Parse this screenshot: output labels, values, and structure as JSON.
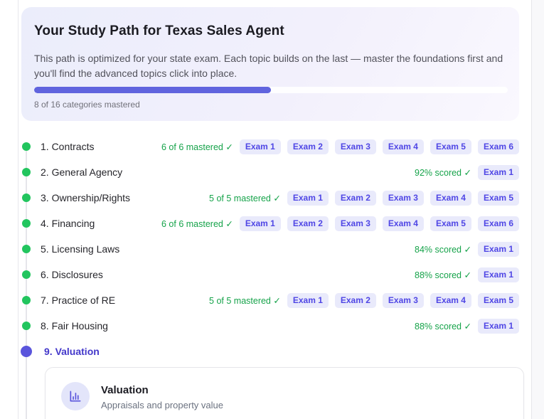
{
  "header": {
    "title": "Your Study Path for Texas Sales Agent",
    "description": "This path is optimized for your state exam. Each topic builds on the last — master the foundations first and you'll find the advanced topics click into place.",
    "progress": {
      "percent": 50,
      "label": "8 of 16 categories mastered"
    }
  },
  "topics": [
    {
      "label": "1. Contracts",
      "status": "6 of 6 mastered ✓",
      "exams": [
        "Exam 1",
        "Exam 2",
        "Exam 3",
        "Exam 4",
        "Exam 5",
        "Exam 6"
      ],
      "state": "complete"
    },
    {
      "label": "2. General Agency",
      "status": "92% scored ✓",
      "exams": [
        "Exam 1"
      ],
      "state": "complete"
    },
    {
      "label": "3. Ownership/Rights",
      "status": "5 of 5 mastered ✓",
      "exams": [
        "Exam 1",
        "Exam 2",
        "Exam 3",
        "Exam 4",
        "Exam 5"
      ],
      "state": "complete"
    },
    {
      "label": "4. Financing",
      "status": "6 of 6 mastered ✓",
      "exams": [
        "Exam 1",
        "Exam 2",
        "Exam 3",
        "Exam 4",
        "Exam 5",
        "Exam 6"
      ],
      "state": "complete"
    },
    {
      "label": "5. Licensing Laws",
      "status": "84% scored ✓",
      "exams": [
        "Exam 1"
      ],
      "state": "complete"
    },
    {
      "label": "6. Disclosures",
      "status": "88% scored ✓",
      "exams": [
        "Exam 1"
      ],
      "state": "complete"
    },
    {
      "label": "7. Practice of RE",
      "status": "5 of 5 mastered ✓",
      "exams": [
        "Exam 1",
        "Exam 2",
        "Exam 3",
        "Exam 4",
        "Exam 5"
      ],
      "state": "complete"
    },
    {
      "label": "8. Fair Housing",
      "status": "88% scored ✓",
      "exams": [
        "Exam 1"
      ],
      "state": "complete"
    },
    {
      "label": "9. Valuation",
      "status": "",
      "exams": [],
      "state": "current"
    }
  ],
  "detail_card": {
    "icon": "bar-chart-icon",
    "title": "Valuation",
    "subtitle": "Appraisals and property value"
  },
  "colors": {
    "accent_indigo": "#4f46e5",
    "badge_bg": "#e9eafb",
    "progress_fill": "#6064de",
    "current_dot": "#5a55dc",
    "current_indigo": "#4338ca",
    "dot_green": "#22c55e",
    "success_green": "#16a34a"
  }
}
